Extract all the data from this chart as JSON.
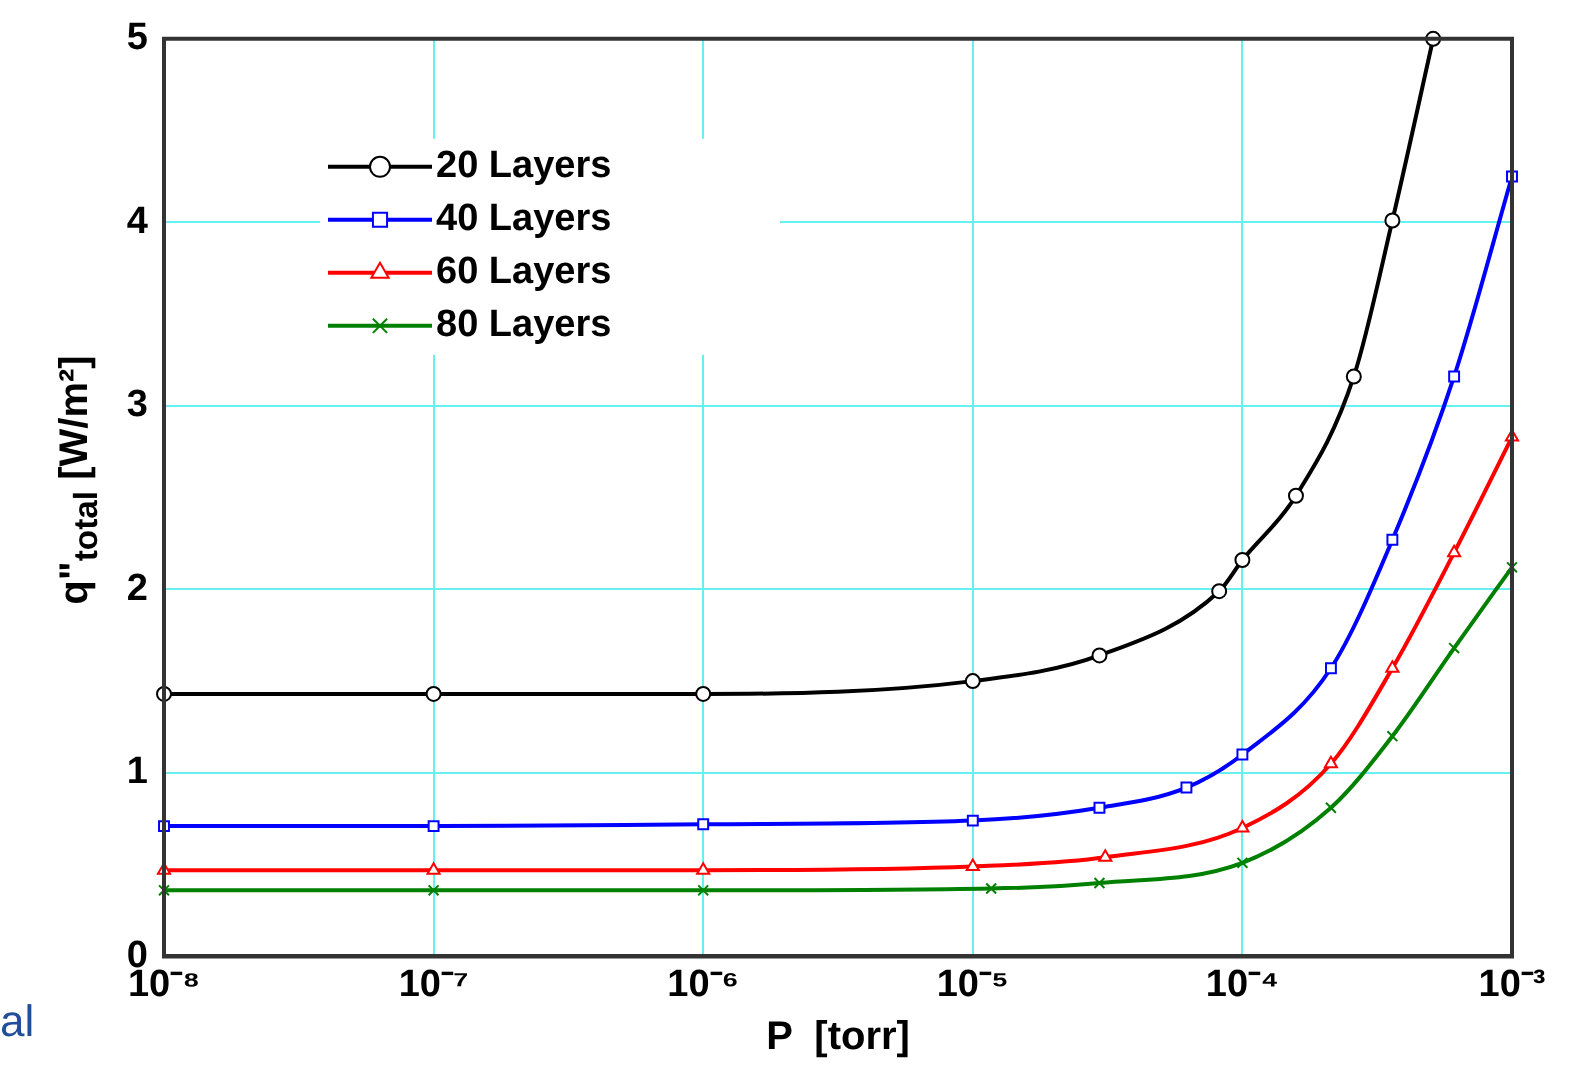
{
  "chart_data": {
    "type": "line",
    "xlabel": "P  [torr]",
    "ylabel": "q\"$_{total}$ [W/m²]",
    "log": "x",
    "xlim": [
      1e-08,
      0.001
    ],
    "xticks": [
      {
        "value": 1e-08,
        "label": "10⁻⁸"
      },
      {
        "value": 1e-07,
        "label": "10⁻⁷"
      },
      {
        "value": 1e-06,
        "label": "10⁻⁶"
      },
      {
        "value": 1e-05,
        "label": "10⁻⁵"
      },
      {
        "value": 0.0001,
        "label": "10⁻⁴"
      },
      {
        "value": 0.001,
        "label": "10⁻³"
      }
    ],
    "ylim": [
      0,
      5
    ],
    "yticks": [
      0,
      1,
      2,
      3,
      4,
      5
    ],
    "grid": true,
    "legend": "top left",
    "line_style": "solid",
    "annotations": [
      "al"
    ],
    "series": [
      {
        "name": "20 Layers",
        "color": "#000000",
        "marker": "circle",
        "x": [
          1e-08,
          1e-07,
          1e-06,
          1e-05,
          2.95e-05,
          8.2e-05,
          0.0001,
          0.000158,
          0.000259,
          0.00036,
          0.00051
        ],
        "values": [
          1.43,
          1.43,
          1.43,
          1.5,
          1.64,
          1.99,
          2.16,
          2.51,
          3.16,
          4.01,
          5.0
        ]
      },
      {
        "name": "40 Layers",
        "color": "#0000ff",
        "marker": "square",
        "x": [
          1e-08,
          1e-07,
          1e-06,
          1e-05,
          2.95e-05,
          6.2e-05,
          0.0001,
          0.000213,
          0.00036,
          0.00061,
          0.001
        ],
        "values": [
          0.71,
          0.71,
          0.72,
          0.74,
          0.81,
          0.92,
          1.1,
          1.57,
          2.27,
          3.16,
          4.25
        ]
      },
      {
        "name": "60 Layers",
        "color": "#ff0000",
        "marker": "triangle",
        "x": [
          1e-08,
          1e-07,
          1e-06,
          1e-05,
          3.1e-05,
          0.0001,
          0.000213,
          0.00036,
          0.00061,
          0.001
        ],
        "values": [
          0.47,
          0.47,
          0.47,
          0.49,
          0.54,
          0.7,
          1.05,
          1.57,
          2.2,
          2.83
        ]
      },
      {
        "name": "80 Layers",
        "color": "#008000",
        "marker": "cross",
        "x": [
          1e-08,
          1e-07,
          1e-06,
          1.17e-05,
          2.95e-05,
          0.0001,
          0.000213,
          0.00036,
          0.00061,
          0.001
        ],
        "values": [
          0.36,
          0.36,
          0.36,
          0.37,
          0.4,
          0.51,
          0.81,
          1.2,
          1.68,
          2.12
        ]
      }
    ]
  }
}
